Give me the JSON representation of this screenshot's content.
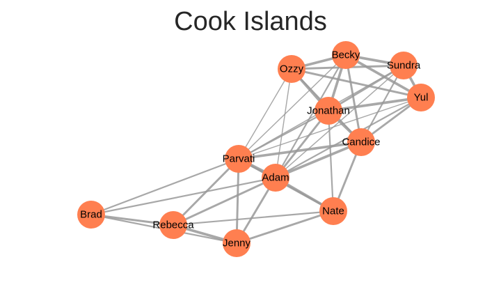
{
  "title": "Cook Islands",
  "colors": {
    "node": "#ff7f50",
    "edge": "#999999",
    "label": "#000000",
    "title": "#262626"
  },
  "nodes": [
    {
      "id": "Ozzy",
      "label": "Ozzy"
    },
    {
      "id": "Becky",
      "label": "Becky"
    },
    {
      "id": "Sundra",
      "label": "Sundra"
    },
    {
      "id": "Yul",
      "label": "Yul"
    },
    {
      "id": "Jonathan",
      "label": "Jonathan"
    },
    {
      "id": "Candice",
      "label": "Candice"
    },
    {
      "id": "Parvati",
      "label": "Parvati"
    },
    {
      "id": "Adam",
      "label": "Adam"
    },
    {
      "id": "Nate",
      "label": "Nate"
    },
    {
      "id": "Brad",
      "label": "Brad"
    },
    {
      "id": "Rebecca",
      "label": "Rebecca"
    },
    {
      "id": "Jenny",
      "label": "Jenny"
    }
  ],
  "edges": [
    {
      "source": "Ozzy",
      "target": "Becky",
      "weight": 4
    },
    {
      "source": "Ozzy",
      "target": "Sundra",
      "weight": 3
    },
    {
      "source": "Ozzy",
      "target": "Yul",
      "weight": 3
    },
    {
      "source": "Ozzy",
      "target": "Jonathan",
      "weight": 4
    },
    {
      "source": "Ozzy",
      "target": "Candice",
      "weight": 2
    },
    {
      "source": "Ozzy",
      "target": "Parvati",
      "weight": 1
    },
    {
      "source": "Ozzy",
      "target": "Adam",
      "weight": 1
    },
    {
      "source": "Becky",
      "target": "Sundra",
      "weight": 4
    },
    {
      "source": "Becky",
      "target": "Yul",
      "weight": 4
    },
    {
      "source": "Becky",
      "target": "Jonathan",
      "weight": 4
    },
    {
      "source": "Becky",
      "target": "Candice",
      "weight": 3
    },
    {
      "source": "Becky",
      "target": "Parvati",
      "weight": 1
    },
    {
      "source": "Becky",
      "target": "Adam",
      "weight": 2
    },
    {
      "source": "Sundra",
      "target": "Yul",
      "weight": 4
    },
    {
      "source": "Sundra",
      "target": "Jonathan",
      "weight": 3
    },
    {
      "source": "Sundra",
      "target": "Candice",
      "weight": 2
    },
    {
      "source": "Sundra",
      "target": "Parvati",
      "weight": 1
    },
    {
      "source": "Sundra",
      "target": "Adam",
      "weight": 1
    },
    {
      "source": "Yul",
      "target": "Jonathan",
      "weight": 4
    },
    {
      "source": "Yul",
      "target": "Candice",
      "weight": 3
    },
    {
      "source": "Yul",
      "target": "Parvati",
      "weight": 1
    },
    {
      "source": "Yul",
      "target": "Adam",
      "weight": 2
    },
    {
      "source": "Jonathan",
      "target": "Candice",
      "weight": 4
    },
    {
      "source": "Jonathan",
      "target": "Parvati",
      "weight": 2
    },
    {
      "source": "Jonathan",
      "target": "Adam",
      "weight": 3
    },
    {
      "source": "Jonathan",
      "target": "Nate",
      "weight": 2
    },
    {
      "source": "Candice",
      "target": "Parvati",
      "weight": 4
    },
    {
      "source": "Candice",
      "target": "Adam",
      "weight": 4
    },
    {
      "source": "Candice",
      "target": "Nate",
      "weight": 3
    },
    {
      "source": "Parvati",
      "target": "Adam",
      "weight": 5
    },
    {
      "source": "Parvati",
      "target": "Nate",
      "weight": 3
    },
    {
      "source": "Parvati",
      "target": "Brad",
      "weight": 2
    },
    {
      "source": "Parvati",
      "target": "Rebecca",
      "weight": 3
    },
    {
      "source": "Parvati",
      "target": "Jenny",
      "weight": 3
    },
    {
      "source": "Adam",
      "target": "Nate",
      "weight": 4
    },
    {
      "source": "Adam",
      "target": "Brad",
      "weight": 2
    },
    {
      "source": "Adam",
      "target": "Rebecca",
      "weight": 3
    },
    {
      "source": "Adam",
      "target": "Jenny",
      "weight": 3
    },
    {
      "source": "Nate",
      "target": "Rebecca",
      "weight": 2
    },
    {
      "source": "Nate",
      "target": "Jenny",
      "weight": 3
    },
    {
      "source": "Brad",
      "target": "Rebecca",
      "weight": 3
    },
    {
      "source": "Brad",
      "target": "Jenny",
      "weight": 2
    },
    {
      "source": "Rebecca",
      "target": "Jenny",
      "weight": 4
    }
  ]
}
